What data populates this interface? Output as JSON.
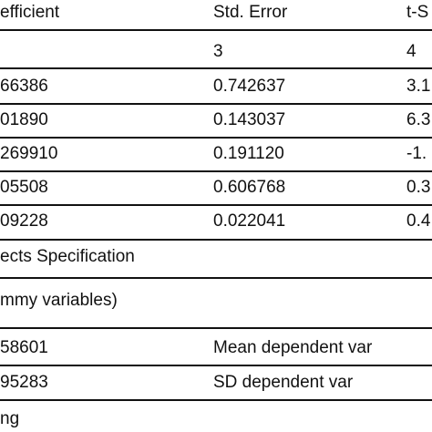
{
  "table": {
    "header": {
      "col1": "efficient",
      "col2": "Std. Error",
      "col3": "t-S"
    },
    "index_row": {
      "col2": "3",
      "col3": "4"
    },
    "rows": [
      {
        "col1": "66386",
        "col2": "0.742637",
        "col3": "3.1"
      },
      {
        "col1": "01890",
        "col2": "0.143037",
        "col3": "6.3"
      },
      {
        "col1": "269910",
        "col2": "0.191120",
        "col3": "-1."
      },
      {
        "col1": "05508",
        "col2": "0.606768",
        "col3": "0.3"
      },
      {
        "col1": "09228",
        "col2": "0.022041",
        "col3": "0.4"
      }
    ],
    "effects_spec": "ects Specification",
    "dummy_note": "mmy variables)",
    "stats": [
      {
        "value": "58601",
        "label": "Mean dependent var"
      },
      {
        "value": "95283",
        "label": "SD dependent var"
      }
    ],
    "footer": "ng"
  }
}
